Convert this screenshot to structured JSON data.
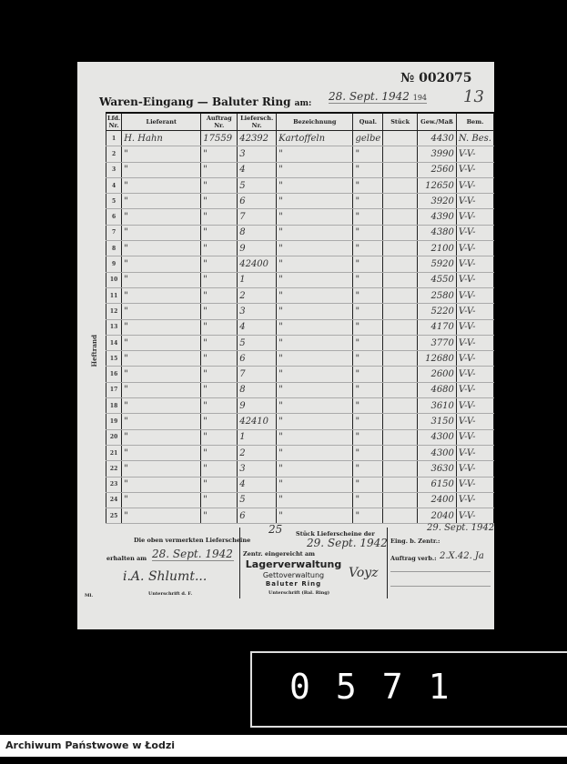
{
  "document": {
    "number": "№ 002075",
    "title": "Waren-Eingang — Baluter Ring",
    "date_label": "am:",
    "date": "28. Sept. 1942",
    "date_printed_suffix": "194",
    "sheet_no": "13",
    "margin_label": "Heftrand",
    "columns": [
      "Lfd. Nr.",
      "Lieferant",
      "Auftrag Nr.",
      "Liefersch. Nr.",
      "Bezeichnung",
      "Qual.",
      "Stück",
      "Gew./Maß",
      "Bem."
    ],
    "rows": [
      [
        "1",
        "H. Hahn",
        "17559",
        "42392",
        "Kartoffeln",
        "gelbe",
        "",
        "4430",
        "N. Bes."
      ],
      [
        "2",
        "\"",
        "\"",
        "3",
        "\"",
        "\"",
        "",
        "3990",
        "V-V-"
      ],
      [
        "3",
        "\"",
        "\"",
        "4",
        "\"",
        "\"",
        "",
        "2560",
        "V-V-"
      ],
      [
        "4",
        "\"",
        "\"",
        "5",
        "\"",
        "\"",
        "",
        "12650",
        "V-V-"
      ],
      [
        "5",
        "\"",
        "\"",
        "6",
        "\"",
        "\"",
        "",
        "3920",
        "V-V-"
      ],
      [
        "6",
        "\"",
        "\"",
        "7",
        "\"",
        "\"",
        "",
        "4390",
        "V-V-"
      ],
      [
        "7",
        "\"",
        "\"",
        "8",
        "\"",
        "\"",
        "",
        "4380",
        "V-V-"
      ],
      [
        "8",
        "\"",
        "\"",
        "9",
        "\"",
        "\"",
        "",
        "2100",
        "V-V-"
      ],
      [
        "9",
        "\"",
        "\"",
        "42400",
        "\"",
        "\"",
        "",
        "5920",
        "V-V-"
      ],
      [
        "10",
        "\"",
        "\"",
        "1",
        "\"",
        "\"",
        "",
        "4550",
        "V-V-"
      ],
      [
        "11",
        "\"",
        "\"",
        "2",
        "\"",
        "\"",
        "",
        "2580",
        "V-V-"
      ],
      [
        "12",
        "\"",
        "\"",
        "3",
        "\"",
        "\"",
        "",
        "5220",
        "V-V-"
      ],
      [
        "13",
        "\"",
        "\"",
        "4",
        "\"",
        "\"",
        "",
        "4170",
        "V-V-"
      ],
      [
        "14",
        "\"",
        "\"",
        "5",
        "\"",
        "\"",
        "",
        "3770",
        "V-V-"
      ],
      [
        "15",
        "\"",
        "\"",
        "6",
        "\"",
        "\"",
        "",
        "12680",
        "V-V-"
      ],
      [
        "16",
        "\"",
        "\"",
        "7",
        "\"",
        "\"",
        "",
        "2600",
        "V-V-"
      ],
      [
        "17",
        "\"",
        "\"",
        "8",
        "\"",
        "\"",
        "",
        "4680",
        "V-V-"
      ],
      [
        "18",
        "\"",
        "\"",
        "9",
        "\"",
        "\"",
        "",
        "3610",
        "V-V-"
      ],
      [
        "19",
        "\"",
        "\"",
        "42410",
        "\"",
        "\"",
        "",
        "3150",
        "V-V-"
      ],
      [
        "20",
        "\"",
        "\"",
        "1",
        "\"",
        "\"",
        "",
        "4300",
        "V-V-"
      ],
      [
        "21",
        "\"",
        "\"",
        "2",
        "\"",
        "\"",
        "",
        "4300",
        "V-V-"
      ],
      [
        "22",
        "\"",
        "\"",
        "3",
        "\"",
        "\"",
        "",
        "3630",
        "V-V-"
      ],
      [
        "23",
        "\"",
        "\"",
        "4",
        "\"",
        "\"",
        "",
        "6150",
        "V-V-"
      ],
      [
        "24",
        "\"",
        "\"",
        "5",
        "\"",
        "\"",
        "",
        "2400",
        "V-V-"
      ],
      [
        "25",
        "\"",
        "\"",
        "6",
        "\"",
        "\"",
        "",
        "2040",
        "V-V-"
      ]
    ],
    "footer": {
      "received_text": "Die oben vermerkten Lieferscheine",
      "received_label": "erhalten am",
      "received_date": "28. Sept. 1942",
      "signature_1": "i.A. Shlumt...",
      "sign_label_1": "Unterschrift d. F.",
      "count": "25",
      "count_label": "Stück Lieferscheine der",
      "submitted_label": "Zentr. eingereicht am",
      "submitted_date": "29. Sept. 1942",
      "stamp_1": "Lagerverwaltung",
      "stamp_2": "Gettoverwaltung",
      "stamp_3": "Baluter Ring",
      "signature_2": "Voyz",
      "sign_label_2": "Unterschrift (Bal. Ring)",
      "arrival_label": "Eing. b. Zentr.:",
      "arrival_date": "29. Sept. 1942",
      "order_label": "Auftrag verb.:",
      "order_value": "2.X.42. Ja",
      "small_mark": "Ml."
    }
  },
  "frame_number": "0571",
  "archive_label": "Archiwum Państwowe w Łodzi"
}
